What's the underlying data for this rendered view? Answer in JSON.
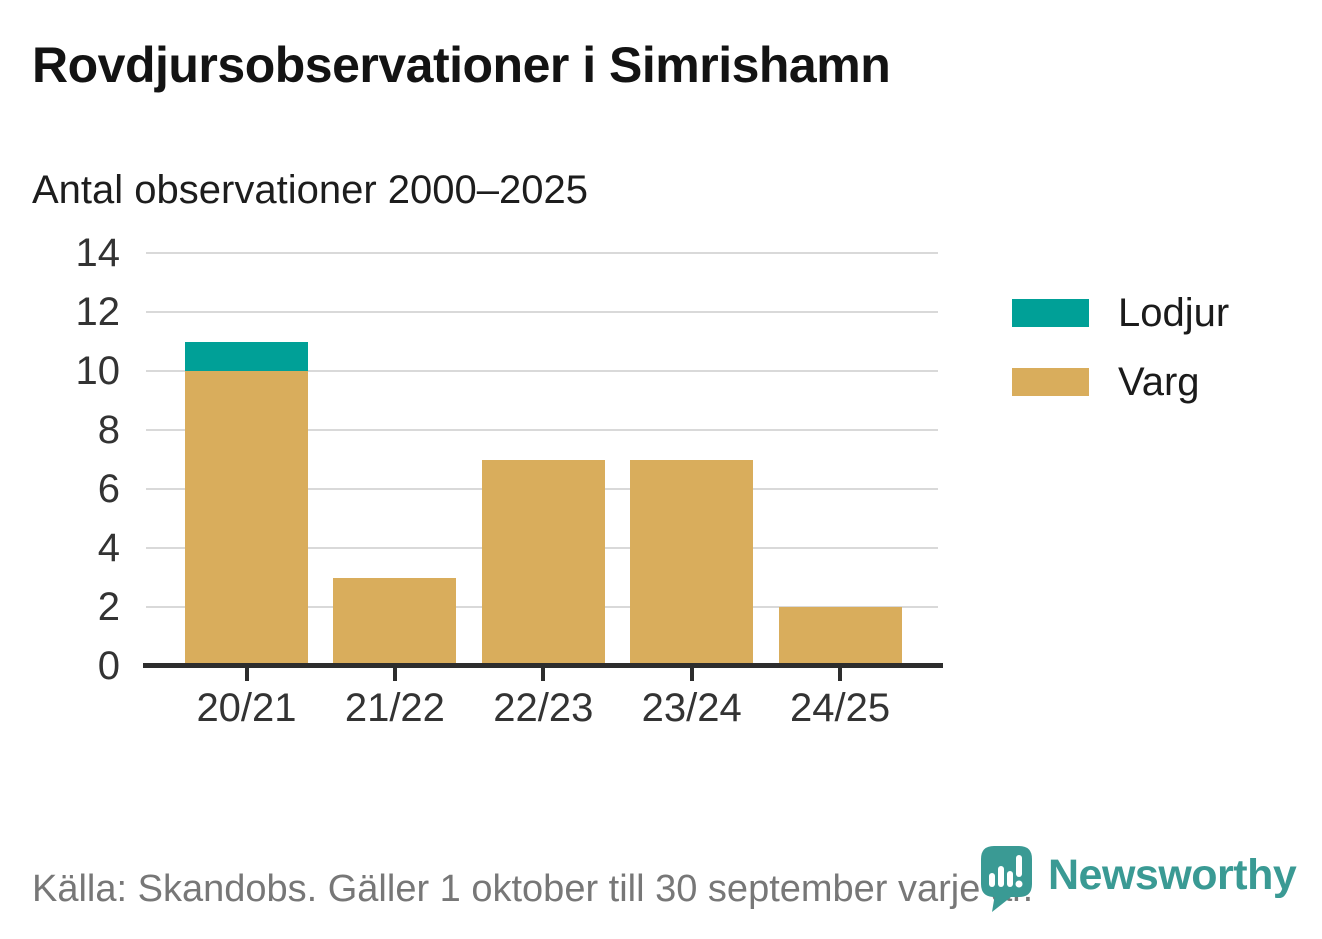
{
  "chart_data": {
    "type": "bar",
    "stacked": true,
    "title": "Rovdjursobservationer i Simrishamn",
    "subtitle": "Antal observationer 2000–2025",
    "categories": [
      "20/21",
      "21/22",
      "22/23",
      "23/24",
      "24/25"
    ],
    "series": [
      {
        "name": "Lodjur",
        "color": "#00a097",
        "values": [
          1,
          0,
          0,
          0,
          0
        ]
      },
      {
        "name": "Varg",
        "color": "#d9ad5c",
        "values": [
          10,
          3,
          7,
          7,
          2
        ]
      }
    ],
    "totals": [
      11,
      3,
      7,
      7,
      2
    ],
    "xlabel": "",
    "ylabel": "",
    "ylim": [
      0,
      14
    ],
    "yticks": [
      0,
      2,
      4,
      6,
      8,
      10,
      12,
      14
    ],
    "grid": true,
    "legend_position": "right",
    "gridline_color": "#d9d9d9",
    "axis_color": "#2d2d2d",
    "tick_label_color": "#333333"
  },
  "footer": {
    "source": "Källa: Skandobs. Gäller 1 oktober till 30 september varje år.",
    "brand": "Newsworthy",
    "brand_color": "#3a9a94"
  }
}
